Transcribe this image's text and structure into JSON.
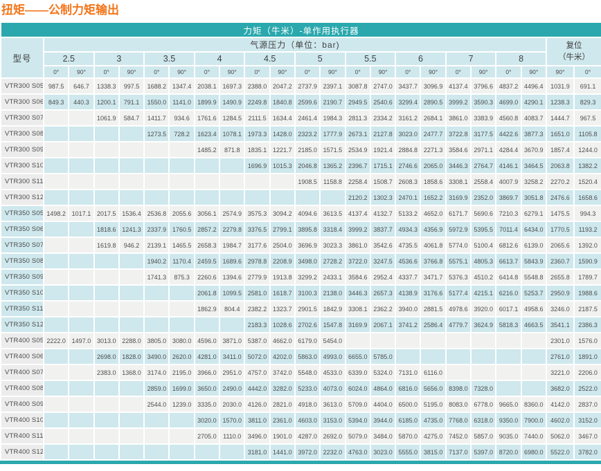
{
  "page_title": "扭矩——公制力矩输出",
  "colors": {
    "accent_teal": "#2ba8ad",
    "header_cyan": "#cfe8ed",
    "row_band_cyan": "#cee8ed",
    "row_band_gray": "#f1f1f0",
    "title_orange": "#f2761b",
    "text_gray": "#4d4d4d"
  },
  "table": {
    "top_header": "力矩（牛米）-单作用执行器",
    "model_header": "型号",
    "pressure_header": "气源压力（单位：bar)",
    "reset_header_line1": "复位",
    "reset_header_line2": "（牛米）",
    "pressures": [
      "2.5",
      "3",
      "3.5",
      "4",
      "4.5",
      "5",
      "5.5",
      "6",
      "7",
      "8"
    ],
    "angle_open": "0°",
    "angle_close": "90°",
    "reset_angles": [
      "90°",
      "0°"
    ],
    "rows": [
      {
        "model": "VTR300 S05",
        "values": [
          "987.5",
          "646.7",
          "1338.3",
          "997.5",
          "1688.2",
          "1347.4",
          "2038.1",
          "1697.3",
          "2388.0",
          "2047.2",
          "2737.9",
          "2397.1",
          "3087.8",
          "2747.0",
          "3437.7",
          "3096.9",
          "4137.4",
          "3796.6",
          "4837.2",
          "4496.4",
          "1031.9",
          "691.1"
        ]
      },
      {
        "model": "VTR300 S06",
        "values": [
          "849.3",
          "440.3",
          "1200.1",
          "791.1",
          "1550.0",
          "1141.0",
          "1899.9",
          "1490.9",
          "2249.8",
          "1840.8",
          "2599.6",
          "2190.7",
          "2949.5",
          "2540.6",
          "3299.4",
          "2890.5",
          "3999.2",
          "3590.3",
          "4699.0",
          "4290.1",
          "1238.3",
          "829.3"
        ]
      },
      {
        "model": "VTR300 S07",
        "values": [
          "",
          "",
          "1061.9",
          "584.7",
          "1411.7",
          "934.6",
          "1761.6",
          "1284.5",
          "2111.5",
          "1634.4",
          "2461.4",
          "1984.3",
          "2811.3",
          "2334.2",
          "3161.2",
          "2684.1",
          "3861.0",
          "3383.9",
          "4560.8",
          "4083.7",
          "1444.7",
          "967.5"
        ]
      },
      {
        "model": "VTR300 S08",
        "values": [
          "",
          "",
          "",
          "",
          "1273.5",
          "728.2",
          "1623.4",
          "1078.1",
          "1973.3",
          "1428.0",
          "2323.2",
          "1777.9",
          "2673.1",
          "2127.8",
          "3023.0",
          "2477.7",
          "3722.8",
          "3177.5",
          "4422.6",
          "3877.3",
          "1651.0",
          "1105.8"
        ]
      },
      {
        "model": "VTR300 S09",
        "values": [
          "",
          "",
          "",
          "",
          "",
          "",
          "1485.2",
          "871.8",
          "1835.1",
          "1221.7",
          "2185.0",
          "1571.5",
          "2534.9",
          "1921.4",
          "2884.8",
          "2271.3",
          "3584.6",
          "2971.1",
          "4284.4",
          "3670.9",
          "1857.4",
          "1244.0"
        ]
      },
      {
        "model": "VTR300 S10",
        "values": [
          "",
          "",
          "",
          "",
          "",
          "",
          "",
          "",
          "1696.9",
          "1015.3",
          "2046.8",
          "1365.2",
          "2396.7",
          "1715.1",
          "2746.6",
          "2065.0",
          "3446.3",
          "2764.7",
          "4146.1",
          "3464.5",
          "2063.8",
          "1382.2"
        ]
      },
      {
        "model": "VTR300 S11",
        "values": [
          "",
          "",
          "",
          "",
          "",
          "",
          "",
          "",
          "",
          "",
          "1908.5",
          "1158.8",
          "2258.4",
          "1508.7",
          "2608.3",
          "1858.6",
          "3308.1",
          "2558.4",
          "4007.9",
          "3258.2",
          "2270.2",
          "1520.4"
        ]
      },
      {
        "model": "VTR300 S12",
        "values": [
          "",
          "",
          "",
          "",
          "",
          "",
          "",
          "",
          "",
          "",
          "",
          "",
          "2120.2",
          "1302.3",
          "2470.1",
          "1652.2",
          "3169.9",
          "2352.0",
          "3869.7",
          "3051.8",
          "2476.6",
          "1658.6"
        ]
      },
      {
        "model": "VTR350 S05",
        "values": [
          "1498.2",
          "1017.1",
          "2017.5",
          "1536.4",
          "2536.8",
          "2055.6",
          "3056.1",
          "2574.9",
          "3575.3",
          "3094.2",
          "4094.6",
          "3613.5",
          "4137.4",
          "4132.7",
          "5133.2",
          "4652.0",
          "6171.7",
          "5690.6",
          "7210.3",
          "6279.1",
          "1475.5",
          "994.3"
        ]
      },
      {
        "model": "VTR350 S06",
        "values": [
          "",
          "",
          "1818.6",
          "1241.3",
          "2337.9",
          "1760.5",
          "2857.2",
          "2279.8",
          "3376.5",
          "2799.1",
          "3895.8",
          "3318.4",
          "3999.2",
          "3837.7",
          "4934.3",
          "4356.9",
          "5972.9",
          "5395.5",
          "7011.4",
          "6434.0",
          "1770.5",
          "1193.2"
        ]
      },
      {
        "model": "VTR350 S07",
        "values": [
          "",
          "",
          "1619.8",
          "946.2",
          "2139.1",
          "1465.5",
          "2658.3",
          "1984.7",
          "3177.6",
          "2504.0",
          "3696.9",
          "3023.3",
          "3861.0",
          "3542.6",
          "4735.5",
          "4061.8",
          "5774.0",
          "5100.4",
          "6812.6",
          "6139.0",
          "2065.6",
          "1392.0"
        ]
      },
      {
        "model": "VTR350 S08",
        "values": [
          "",
          "",
          "",
          "",
          "1940.2",
          "1170.4",
          "2459.5",
          "1689.6",
          "2978.8",
          "2208.9",
          "3498.0",
          "2728.2",
          "3722.0",
          "3247.5",
          "4536.6",
          "3766.8",
          "5575.1",
          "4805.3",
          "6613.7",
          "5843.9",
          "2360.7",
          "1590.9"
        ]
      },
      {
        "model": "VTR350 S09",
        "values": [
          "",
          "",
          "",
          "",
          "1741.3",
          "875.3",
          "2260.6",
          "1394.6",
          "2779.9",
          "1913.8",
          "3299.2",
          "2433.1",
          "3584.6",
          "2952.4",
          "4337.7",
          "3471.7",
          "5376.3",
          "4510.2",
          "6414.8",
          "5548.8",
          "2655.8",
          "1789.7"
        ]
      },
      {
        "model": "VTR350 S10",
        "values": [
          "",
          "",
          "",
          "",
          "",
          "",
          "2061.8",
          "1099.5",
          "2581.0",
          "1618.7",
          "3100.3",
          "2138.0",
          "3446.3",
          "2657.3",
          "4138.9",
          "3176.6",
          "5177.4",
          "4215.1",
          "6216.0",
          "5253.7",
          "2950.9",
          "1988.6"
        ]
      },
      {
        "model": "VTR350 S11",
        "values": [
          "",
          "",
          "",
          "",
          "",
          "",
          "1862.9",
          "804.4",
          "2382.2",
          "1323.7",
          "2901.5",
          "1842.9",
          "3308.1",
          "2362.2",
          "3940.0",
          "2881.5",
          "4978.6",
          "3920.0",
          "6017.1",
          "4958.6",
          "3246.0",
          "2187.5"
        ]
      },
      {
        "model": "VTR350 S12",
        "values": [
          "",
          "",
          "",
          "",
          "",
          "",
          "",
          "",
          "2183.3",
          "1028.6",
          "2702.6",
          "1547.8",
          "3169.9",
          "2067.1",
          "3741.2",
          "2586.4",
          "4779.7",
          "3624.9",
          "5818.3",
          "4663.5",
          "3541.1",
          "2386.3"
        ]
      },
      {
        "model": "VTR400 S05",
        "values": [
          "2222.0",
          "1497.0",
          "3013.0",
          "2288.0",
          "3805.0",
          "3080.0",
          "4596.0",
          "3871.0",
          "5387.0",
          "4662.0",
          "6179.0",
          "5454.0",
          "",
          "",
          "",
          "",
          "",
          "",
          "",
          "",
          "2301.0",
          "1576.0"
        ]
      },
      {
        "model": "VTR400 S06",
        "values": [
          "",
          "",
          "2698.0",
          "1828.0",
          "3490.0",
          "2620.0",
          "4281.0",
          "3411.0",
          "5072.0",
          "4202.0",
          "5863.0",
          "4993.0",
          "6655.0",
          "5785.0",
          "",
          "",
          "",
          "",
          "",
          "",
          "2761.0",
          "1891.0"
        ]
      },
      {
        "model": "VTR400 S07",
        "values": [
          "",
          "",
          "2383.0",
          "1368.0",
          "3174.0",
          "2195.0",
          "3966.0",
          "2951.0",
          "4757.0",
          "3742.0",
          "5548.0",
          "4533.0",
          "6339.0",
          "5324.0",
          "7131.0",
          "6116.0",
          "",
          "",
          "",
          "",
          "3221.0",
          "2206.0"
        ]
      },
      {
        "model": "VTR400 S08",
        "values": [
          "",
          "",
          "",
          "",
          "2859.0",
          "1699.0",
          "3650.0",
          "2490.0",
          "4442.0",
          "3282.0",
          "5233.0",
          "4073.0",
          "6024.0",
          "4864.0",
          "6816.0",
          "5656.0",
          "8398.0",
          "7328.0",
          "",
          "",
          "3682.0",
          "2522.0"
        ]
      },
      {
        "model": "VTR400 S09",
        "values": [
          "",
          "",
          "",
          "",
          "2544.0",
          "1239.0",
          "3335.0",
          "2030.0",
          "4126.0",
          "2821.0",
          "4918.0",
          "3613.0",
          "5709.0",
          "4404.0",
          "6500.0",
          "5195.0",
          "8083.0",
          "6778.0",
          "9665.0",
          "8360.0",
          "4142.0",
          "2837.0"
        ]
      },
      {
        "model": "VTR400 S10",
        "values": [
          "",
          "",
          "",
          "",
          "",
          "",
          "3020.0",
          "1570.0",
          "3811.0",
          "2361.0",
          "4603.0",
          "3153.0",
          "5394.0",
          "3944.0",
          "6185.0",
          "4735.0",
          "7768.0",
          "6318.0",
          "9350.0",
          "7900.0",
          "4602.0",
          "3152.0"
        ]
      },
      {
        "model": "VTR400 S11",
        "values": [
          "",
          "",
          "",
          "",
          "",
          "",
          "2705.0",
          "1110.0",
          "3496.0",
          "1901.0",
          "4287.0",
          "2692.0",
          "5079.0",
          "3484.0",
          "5870.0",
          "4275.0",
          "7452.0",
          "5857.0",
          "9035.0",
          "7440.0",
          "5062.0",
          "3467.0"
        ]
      },
      {
        "model": "VTR400 S12",
        "values": [
          "",
          "",
          "",
          "",
          "",
          "",
          "",
          "",
          "3181.0",
          "1441.0",
          "3972.0",
          "2232.0",
          "4763.0",
          "3023.0",
          "5555.0",
          "3815.0",
          "7137.0",
          "5397.0",
          "8720.0",
          "6980.0",
          "5522.0",
          "3782.0"
        ]
      }
    ]
  }
}
